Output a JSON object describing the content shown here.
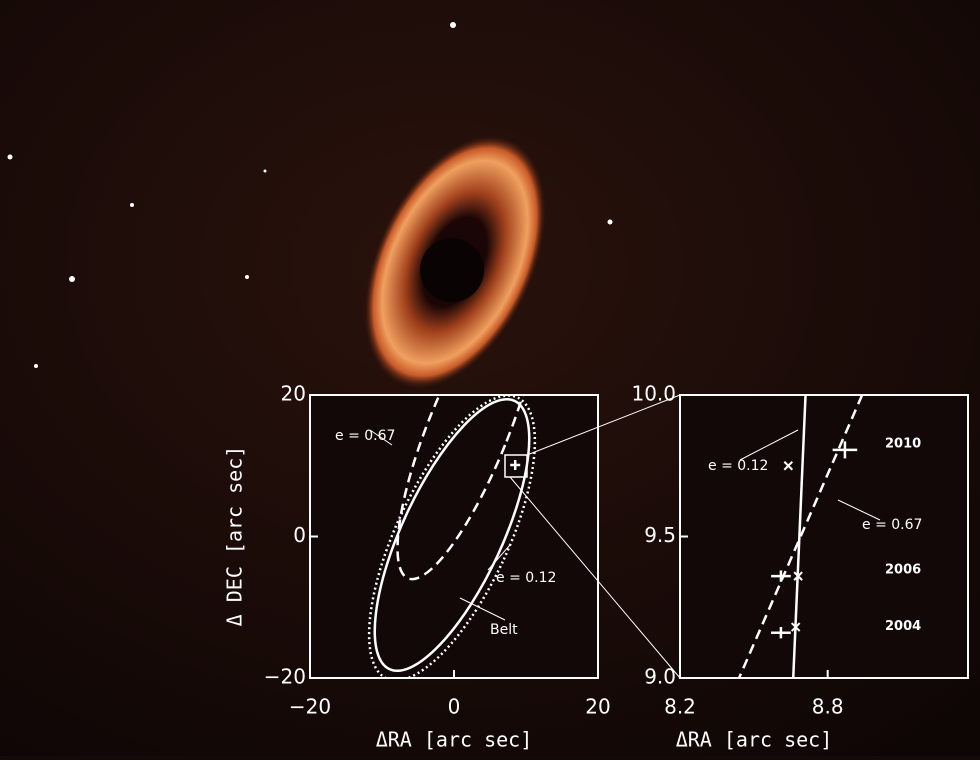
{
  "chart_data": [
    {
      "type": "scatter",
      "xlabel": "ΔRA [arc sec]",
      "ylabel": "Δ DEC [arc sec]",
      "x": [
        8.5
      ],
      "values": [
        10.1
      ],
      "xlim": [
        -20,
        20
      ],
      "ylim": [
        -20,
        20
      ],
      "xticks": [
        {
          "value": -20,
          "label": "−20"
        },
        0,
        20
      ],
      "yticks": [
        {
          "value": -20,
          "label": "−20"
        },
        0,
        20
      ],
      "annotations": [
        "e = 0.67",
        "e = 0.12",
        "Belt"
      ],
      "color": "#ffffff"
    },
    {
      "type": "scatter",
      "xlabel": "ΔRA [arc sec]",
      "x": [
        8.87,
        8.61,
        8.61
      ],
      "values": [
        9.806,
        9.36,
        9.16
      ],
      "xerr": [
        0.05,
        0.04,
        0.04
      ],
      "yerr": [
        0.03,
        0.02,
        0.02
      ],
      "labels": [
        "2010",
        "2006",
        "2004"
      ],
      "model": {
        "x": [
          8.64,
          8.68,
          8.67
        ],
        "values": [
          9.75,
          9.36,
          9.18
        ]
      },
      "lines": [
        {
          "label": "e = 0.12",
          "style": "solid",
          "x": [
            8.71,
            8.66
          ],
          "values": [
            10,
            9
          ]
        },
        {
          "label": "e = 0.67",
          "style": "dashed",
          "x": [
            8.94,
            8.44
          ],
          "values": [
            10,
            9
          ]
        }
      ],
      "xlim": [
        8.2,
        9.37
      ],
      "ylim": [
        9,
        10
      ],
      "xticks": [
        8.2,
        8.8
      ],
      "yticks": [
        {
          "value": 9,
          "label": "9.0"
        },
        9.5,
        {
          "value": 10,
          "label": "10.0"
        }
      ],
      "color": "#ffffff"
    }
  ]
}
